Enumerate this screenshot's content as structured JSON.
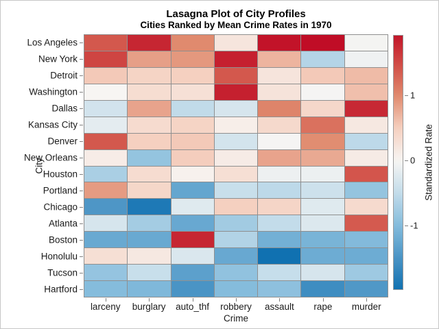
{
  "header": {
    "title": "Lasagna Plot of City Profiles",
    "subtitle": "Cities Ranked by Mean Crime Rates in 1970"
  },
  "axes": {
    "x_title": "Crime",
    "y_title": "City"
  },
  "colorbar": {
    "label": "Standardized Rate",
    "ticks": [
      {
        "value": 1,
        "label": "1"
      },
      {
        "value": 0,
        "label": "0"
      },
      {
        "value": -1,
        "label": "-1"
      }
    ],
    "top_value": 1.93,
    "bottom_value": -1.99
  },
  "chart_data": {
    "type": "heatmap",
    "title": "Lasagna Plot of City Profiles",
    "subtitle": "Cities Ranked by Mean Crime Rates in 1970",
    "xlabel": "Crime",
    "ylabel": "City",
    "legend_label": "Standardized Rate",
    "value_range": [
      -2,
      2
    ],
    "grid": true,
    "gridline_color": "#8f8f8f",
    "x_categories": [
      "larceny",
      "burglary",
      "auto_thf",
      "robbery",
      "assault",
      "rape",
      "murder"
    ],
    "y_categories": [
      "Los Angeles",
      "New York",
      "Detroit",
      "Washington",
      "Dallas",
      "Kansas City",
      "Denver",
      "New Orleans",
      "Houston",
      "Portland",
      "Chicago",
      "Atlanta",
      "Boston",
      "Honolulu",
      "Tucson",
      "Hartford"
    ],
    "values": [
      [
        1.4,
        1.8,
        1.0,
        0.22,
        1.95,
        2.0,
        -0.03
      ],
      [
        1.55,
        0.85,
        0.9,
        1.85,
        0.7,
        -0.62,
        -0.08
      ],
      [
        0.55,
        0.45,
        0.5,
        1.4,
        0.23,
        0.55,
        0.65
      ],
      [
        0.0,
        0.33,
        0.28,
        1.85,
        0.25,
        -0.02,
        0.62
      ],
      [
        -0.36,
        0.82,
        -0.52,
        -0.32,
        1.05,
        0.4,
        1.78
      ],
      [
        -0.18,
        0.35,
        0.45,
        0.1,
        0.38,
        1.2,
        0.18
      ],
      [
        1.4,
        0.5,
        0.55,
        -0.35,
        -0.02,
        0.98,
        -0.55
      ],
      [
        0.12,
        -0.88,
        0.52,
        0.13,
        0.82,
        0.78,
        0.14
      ],
      [
        -0.7,
        0.34,
        0.06,
        0.3,
        -0.1,
        -0.11,
        1.42
      ],
      [
        0.88,
        0.41,
        -1.28,
        -0.45,
        -0.55,
        -0.4,
        -0.88
      ],
      [
        -1.47,
        -1.88,
        -0.23,
        0.5,
        0.43,
        -0.23,
        0.36
      ],
      [
        -0.32,
        -0.75,
        -1.25,
        -0.77,
        -0.5,
        -0.26,
        1.38
      ],
      [
        -1.24,
        -1.24,
        1.8,
        -0.64,
        -1.15,
        -1.1,
        -1.02
      ],
      [
        0.3,
        0.18,
        -0.28,
        -1.25,
        -2.0,
        -1.2,
        -1.2
      ],
      [
        -0.87,
        -0.45,
        -1.35,
        -0.9,
        -0.47,
        -0.32,
        -0.8
      ],
      [
        -1.0,
        -1.05,
        -1.5,
        -1.0,
        -0.93,
        -1.6,
        -1.45
      ]
    ],
    "colormap_stops": [
      {
        "value": 2.0,
        "color": "#C00D26"
      },
      {
        "value": 1.5,
        "color": "#D04B45"
      },
      {
        "value": 1.0,
        "color": "#E08A6E"
      },
      {
        "value": 0.5,
        "color": "#F5D0C0"
      },
      {
        "value": 0.0,
        "color": "#F7F5F3"
      },
      {
        "value": -0.5,
        "color": "#C3DCEA"
      },
      {
        "value": -1.0,
        "color": "#85BCDC"
      },
      {
        "value": -1.5,
        "color": "#4A94C5"
      },
      {
        "value": -2.0,
        "color": "#1071B1"
      }
    ],
    "legend_position": "right"
  }
}
